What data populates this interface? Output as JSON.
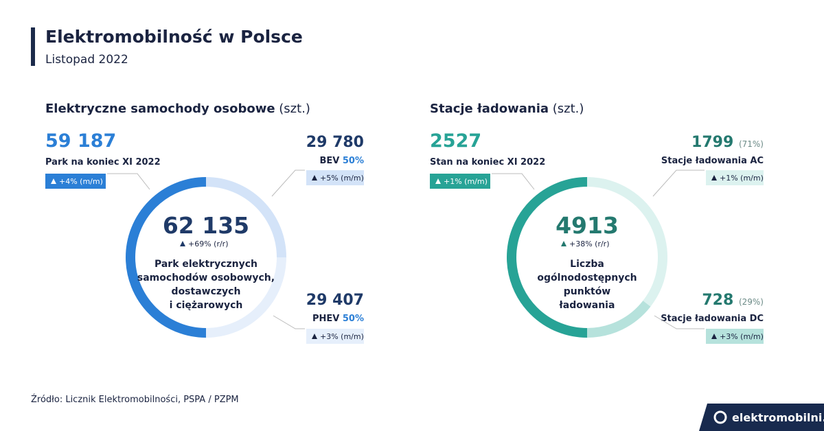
{
  "header": {
    "title": "Elektromobilność w Polsce",
    "subtitle": "Listopad 2022"
  },
  "panels": [
    {
      "heading": "Elektryczne samochody osobowe",
      "unit": "(szt.)",
      "accent": "#2b7fd6",
      "dark": "#1f3a68",
      "lead": {
        "value": "59 187",
        "label": "Park na koniec XI 2022",
        "change": "+4% (m/m)"
      },
      "center": {
        "value": "62 135",
        "change": "+69% (r/r)",
        "label": [
          "Park elektrycznych",
          "samochodów osobowych,",
          "dostawczych",
          "i ciężarowych"
        ]
      },
      "segments": [
        {
          "value": "29 780",
          "name": "BEV",
          "share": 50,
          "share_label": "50%",
          "change": "+5% (m/m)",
          "color": "#d3e3f8"
        },
        {
          "value": "29 407",
          "name": "PHEV",
          "share": 50,
          "share_label": "50%",
          "change": "+3% (m/m)",
          "color": "#e6effb"
        }
      ]
    },
    {
      "heading": "Stacje ładowania",
      "unit": "(szt.)",
      "accent": "#27a396",
      "dark": "#24796f",
      "lead": {
        "value": "2527",
        "label": "Stan na koniec XI 2022",
        "change": "+1% (m/m)"
      },
      "center": {
        "value": "4913",
        "change": "+38% (r/r)",
        "label": [
          "Liczba",
          "ogólnodostępnych",
          "punktów",
          "ładowania"
        ]
      },
      "segments": [
        {
          "value": "1799",
          "name": "Stacje ładowania AC",
          "share": 71,
          "share_label": "(71%)",
          "change": "+1% (m/m)",
          "color": "#dcf2ef"
        },
        {
          "value": "728",
          "name": "Stacje ładowania DC",
          "share": 29,
          "share_label": "(29%)",
          "change": "+3% (m/m)",
          "color": "#b6e2dc"
        }
      ]
    }
  ],
  "footer": {
    "source": "Źródło: Licznik Elektromobilności, PSPA / PZPM",
    "brand": "elektromobilni.pl"
  }
}
